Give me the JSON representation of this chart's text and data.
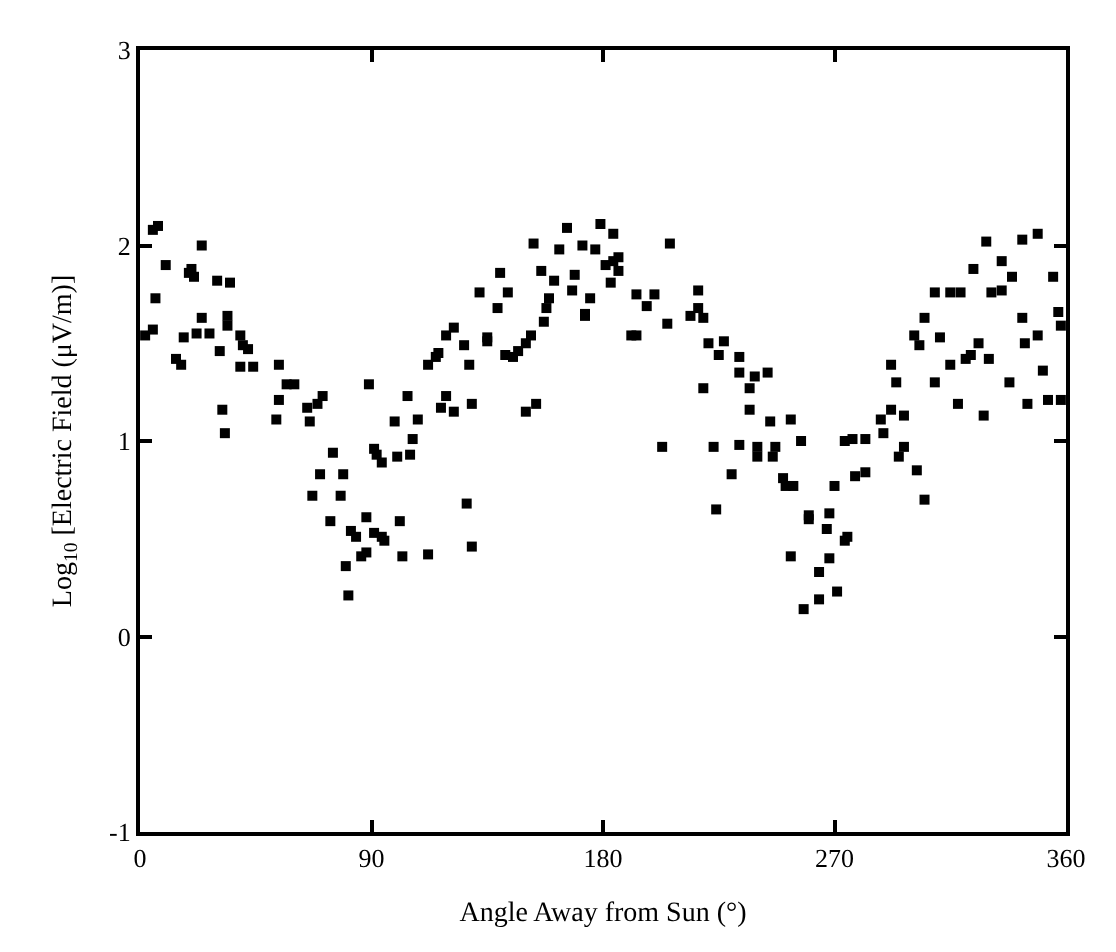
{
  "chart_data": {
    "type": "scatter",
    "xlabel": "Angle Away from Sun (°)",
    "ylabel": "Log$_{10}$ [Electric Field (μV/m)]",
    "xlim": [
      0,
      360
    ],
    "xticks": [
      0,
      90,
      180,
      270,
      360
    ],
    "ylim": [
      -1,
      3
    ],
    "yticks": [
      -1,
      0,
      1,
      2,
      3
    ],
    "marker": "square",
    "series": [
      {
        "color": "#000000",
        "x": [
          349,
          343,
          355,
          357,
          358,
          349,
          344,
          351,
          358,
          353,
          345,
          338,
          335,
          339,
          335,
          331,
          329,
          324,
          343,
          326,
          330,
          323,
          321,
          315,
          318,
          328,
          309,
          311,
          319,
          315,
          309,
          305,
          301,
          303,
          292,
          294,
          292,
          297,
          288,
          289,
          282,
          277,
          274,
          297,
          253,
          245,
          257,
          247,
          240,
          246,
          233,
          223,
          203,
          237,
          244,
          239,
          233,
          237,
          219,
          233,
          227,
          225,
          221,
          219,
          217,
          217,
          214,
          200,
          193,
          197,
          205,
          191,
          193,
          206,
          186,
          184,
          186,
          181,
          184,
          179,
          177,
          172,
          183,
          175,
          173,
          166,
          163,
          169,
          168,
          173,
          153,
          156,
          161,
          159,
          158,
          157,
          152,
          150,
          147,
          145,
          142,
          140,
          143,
          139,
          132,
          135,
          135,
          126,
          122,
          128,
          119,
          116,
          115,
          112,
          154,
          150,
          129,
          119,
          117,
          122,
          108,
          104,
          106,
          99,
          91,
          89,
          71,
          69,
          60,
          57,
          65,
          66,
          53,
          54,
          54,
          33,
          35,
          19,
          21,
          30,
          34,
          34,
          39,
          40,
          42,
          27,
          24,
          22,
          39,
          31,
          32,
          44,
          24,
          20,
          17,
          14,
          16,
          5,
          2,
          10,
          6,
          7,
          5,
          305,
          302,
          295,
          282,
          278,
          270,
          268,
          267,
          275,
          274,
          268,
          264,
          271,
          264,
          258,
          253,
          260,
          260,
          254,
          251,
          250,
          230,
          224,
          240,
          127,
          129,
          112,
          102,
          101,
          88,
          94,
          95,
          91,
          82,
          84,
          88,
          86,
          80,
          81,
          74,
          78,
          67,
          79,
          70,
          105,
          100,
          94,
          92,
          75
        ],
        "values": [
          2.06,
          2.03,
          1.84,
          1.66,
          1.59,
          1.54,
          1.5,
          1.36,
          1.21,
          1.21,
          1.19,
          1.3,
          1.92,
          1.84,
          1.77,
          1.76,
          2.02,
          1.88,
          1.63,
          1.5,
          1.42,
          1.44,
          1.42,
          1.39,
          1.19,
          1.13,
          1.3,
          1.53,
          1.76,
          1.76,
          1.76,
          1.63,
          1.54,
          1.49,
          1.39,
          1.3,
          1.16,
          1.13,
          1.11,
          1.04,
          1.01,
          1.01,
          1.0,
          0.97,
          1.11,
          1.1,
          1.0,
          0.97,
          0.97,
          0.92,
          0.98,
          0.97,
          0.97,
          1.16,
          1.35,
          1.33,
          1.35,
          1.27,
          1.27,
          1.43,
          1.51,
          1.44,
          1.5,
          1.63,
          1.68,
          1.77,
          1.64,
          1.75,
          1.75,
          1.69,
          1.6,
          1.54,
          1.54,
          2.01,
          1.94,
          1.92,
          1.87,
          1.9,
          2.06,
          2.11,
          1.98,
          2.0,
          1.81,
          1.73,
          1.65,
          2.09,
          1.98,
          1.85,
          1.77,
          1.64,
          2.01,
          1.87,
          1.82,
          1.73,
          1.68,
          1.61,
          1.54,
          1.5,
          1.46,
          1.43,
          1.44,
          1.86,
          1.76,
          1.68,
          1.76,
          1.53,
          1.51,
          1.49,
          1.58,
          1.39,
          1.54,
          1.45,
          1.43,
          1.39,
          1.19,
          1.15,
          1.19,
          1.23,
          1.17,
          1.15,
          1.11,
          1.23,
          1.01,
          1.1,
          0.96,
          1.29,
          1.23,
          1.19,
          1.29,
          1.29,
          1.17,
          1.1,
          1.11,
          1.39,
          1.21,
          1.04,
          1.81,
          1.86,
          1.84,
          1.82,
          1.64,
          1.59,
          1.54,
          1.49,
          1.47,
          1.55,
          1.63,
          1.55,
          1.38,
          1.46,
          1.16,
          1.38,
          2.0,
          1.88,
          1.53,
          1.42,
          1.39,
          1.57,
          1.54,
          1.9,
          1.73,
          2.1,
          2.08,
          0.7,
          0.85,
          0.92,
          0.84,
          0.82,
          0.77,
          0.63,
          0.55,
          0.51,
          0.49,
          0.4,
          0.33,
          0.23,
          0.19,
          0.14,
          0.41,
          0.62,
          0.6,
          0.77,
          0.77,
          0.81,
          0.83,
          0.65,
          0.92,
          0.68,
          0.46,
          0.42,
          0.41,
          0.59,
          0.61,
          0.51,
          0.49,
          0.53,
          0.54,
          0.51,
          0.43,
          0.41,
          0.36,
          0.21,
          0.59,
          0.72,
          0.72,
          0.83,
          0.83,
          0.93,
          0.92,
          0.89,
          0.93,
          0.94
        ]
      }
    ]
  }
}
